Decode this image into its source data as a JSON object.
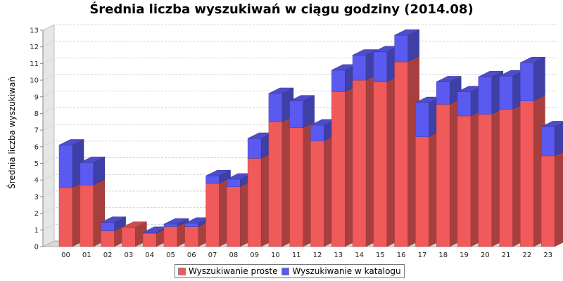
{
  "chart_data": {
    "type": "bar",
    "stacked": true,
    "three_d": true,
    "title": "Średnia liczba wyszukiwań w ciągu godziny (2014.08)",
    "xlabel": "",
    "ylabel": "Średnia liczba wyszukiwań",
    "ylim": [
      0,
      13
    ],
    "yticks": [
      0,
      1,
      2,
      3,
      4,
      5,
      6,
      7,
      8,
      9,
      10,
      11,
      12,
      13
    ],
    "grid": true,
    "legend_position": "bottom",
    "categories": [
      "00",
      "01",
      "02",
      "03",
      "04",
      "05",
      "06",
      "07",
      "08",
      "09",
      "10",
      "11",
      "12",
      "13",
      "14",
      "15",
      "16",
      "17",
      "18",
      "19",
      "20",
      "21",
      "22",
      "23"
    ],
    "series": [
      {
        "name": "Wyszukiwanie proste",
        "color": "#f05a5a",
        "values": [
          3.55,
          3.7,
          0.95,
          1.15,
          0.8,
          1.2,
          1.2,
          3.8,
          3.6,
          5.3,
          7.5,
          7.15,
          6.35,
          9.3,
          10.0,
          9.9,
          11.1,
          6.6,
          8.55,
          7.85,
          7.95,
          8.25,
          8.75,
          5.45
        ]
      },
      {
        "name": "Wyszukiwanie w katalogu",
        "color": "#5a5af0",
        "values": [
          2.55,
          1.35,
          0.5,
          0.0,
          0.05,
          0.15,
          0.2,
          0.45,
          0.45,
          1.2,
          1.7,
          1.6,
          0.95,
          1.3,
          1.5,
          1.8,
          1.6,
          2.05,
          1.35,
          1.45,
          2.25,
          2.0,
          2.3,
          1.75
        ]
      }
    ]
  }
}
